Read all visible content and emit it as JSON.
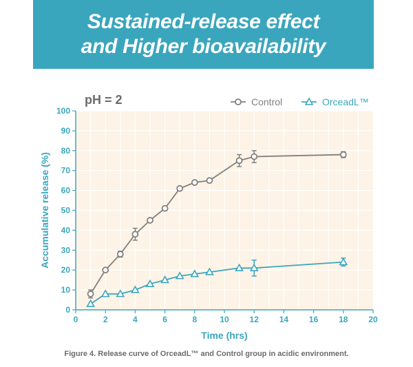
{
  "banner": {
    "title": "Sustained-release effect\nand Higher bioavailability",
    "background": "#3aa6bd"
  },
  "chart_data": {
    "type": "line",
    "annotation": "pH = 2",
    "xlabel": "Time (hrs)",
    "ylabel": "Accumulative release (%)",
    "xlim": [
      0,
      20
    ],
    "ylim": [
      0,
      100
    ],
    "xticks": [
      0,
      2,
      4,
      6,
      8,
      10,
      12,
      14,
      16,
      18,
      20
    ],
    "yticks": [
      0,
      10,
      20,
      30,
      40,
      50,
      60,
      70,
      80,
      90,
      100
    ],
    "grid": true,
    "legend_position": "top-right",
    "plot_background": "#fdf3e6",
    "series": [
      {
        "name": "Control",
        "marker": "circle",
        "color": "#808080",
        "x": [
          1,
          2,
          3,
          4,
          5,
          6,
          7,
          8,
          9,
          11,
          12,
          18
        ],
        "y": [
          8,
          20,
          28,
          38,
          45,
          51,
          61,
          64,
          65,
          75,
          77,
          78
        ],
        "error": [
          2,
          0,
          1.5,
          3,
          0,
          0,
          0,
          0,
          0,
          3,
          3,
          1.5
        ]
      },
      {
        "name": "OrceadL™",
        "marker": "triangle",
        "color": "#3aa6bd",
        "x": [
          1,
          2,
          3,
          4,
          5,
          6,
          7,
          8,
          9,
          11,
          12,
          18
        ],
        "y": [
          3,
          8,
          8,
          10,
          13,
          15,
          17,
          18,
          19,
          21,
          21,
          24
        ],
        "error": [
          0,
          0,
          0,
          0,
          0,
          0,
          0,
          0,
          0,
          0,
          4,
          2
        ]
      }
    ]
  },
  "caption": "Figure 4. Release curve of OrceadL™ and Control group in acidic environment."
}
